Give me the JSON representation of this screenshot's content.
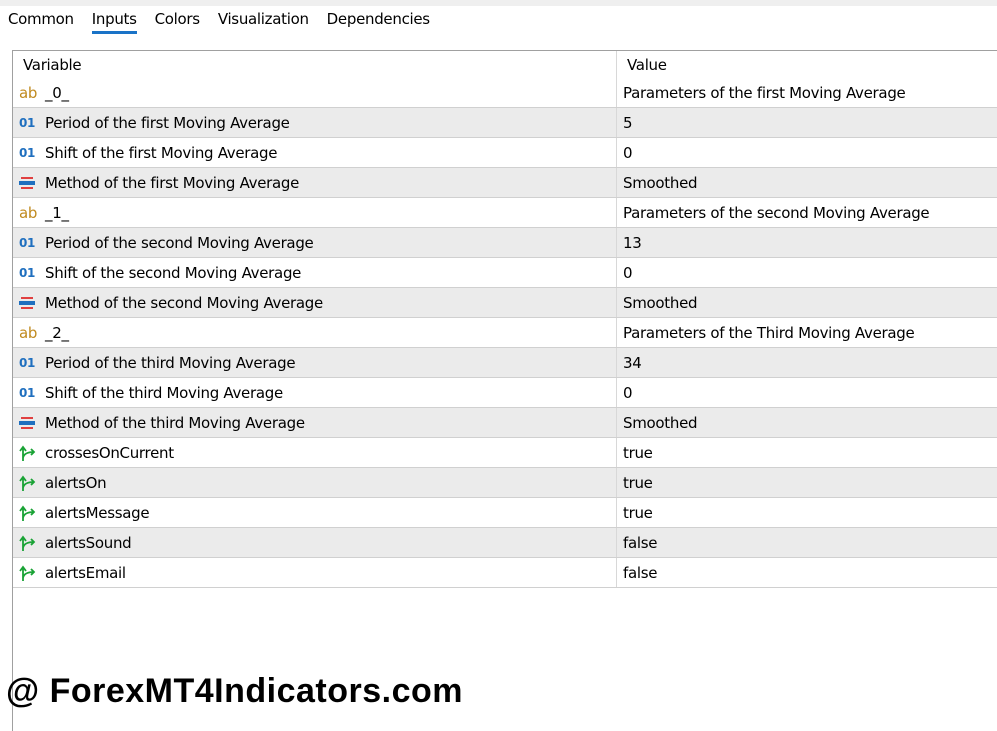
{
  "tabs": [
    "Common",
    "Inputs",
    "Colors",
    "Visualization",
    "Dependencies"
  ],
  "active_tab": "Inputs",
  "table": {
    "headers": [
      "Variable",
      "Value"
    ],
    "rows": [
      {
        "icon": "string-icon",
        "variable": "_0_",
        "value": "Parameters of the first Moving Average"
      },
      {
        "icon": "integer-icon",
        "variable": "Period of the first Moving Average",
        "value": "5"
      },
      {
        "icon": "integer-icon",
        "variable": "Shift of the first Moving Average",
        "value": "0"
      },
      {
        "icon": "enum-icon",
        "variable": "Method of the first Moving Average",
        "value": "Smoothed"
      },
      {
        "icon": "string-icon",
        "variable": "_1_",
        "value": "Parameters of the second Moving Average"
      },
      {
        "icon": "integer-icon",
        "variable": "Period of the second Moving Average",
        "value": "13"
      },
      {
        "icon": "integer-icon",
        "variable": "Shift of the second Moving Average",
        "value": "0"
      },
      {
        "icon": "enum-icon",
        "variable": "Method of the second Moving Average",
        "value": "Smoothed"
      },
      {
        "icon": "string-icon",
        "variable": "_2_",
        "value": "Parameters of the Third Moving Average"
      },
      {
        "icon": "integer-icon",
        "variable": "Period of the third Moving Average",
        "value": "34"
      },
      {
        "icon": "integer-icon",
        "variable": "Shift of the third Moving Average",
        "value": "0"
      },
      {
        "icon": "enum-icon",
        "variable": "Method of the third Moving Average",
        "value": "Smoothed"
      },
      {
        "icon": "bool-icon",
        "variable": "crossesOnCurrent",
        "value": "true"
      },
      {
        "icon": "bool-icon",
        "variable": "alertsOn",
        "value": "true"
      },
      {
        "icon": "bool-icon",
        "variable": "alertsMessage",
        "value": "true"
      },
      {
        "icon": "bool-icon",
        "variable": "alertsSound",
        "value": "false"
      },
      {
        "icon": "bool-icon",
        "variable": "alertsEmail",
        "value": "false"
      }
    ]
  },
  "icon_glyphs": {
    "string-icon": "ab",
    "integer-icon": "01"
  },
  "watermark": "@ ForexMT4Indicators.com"
}
